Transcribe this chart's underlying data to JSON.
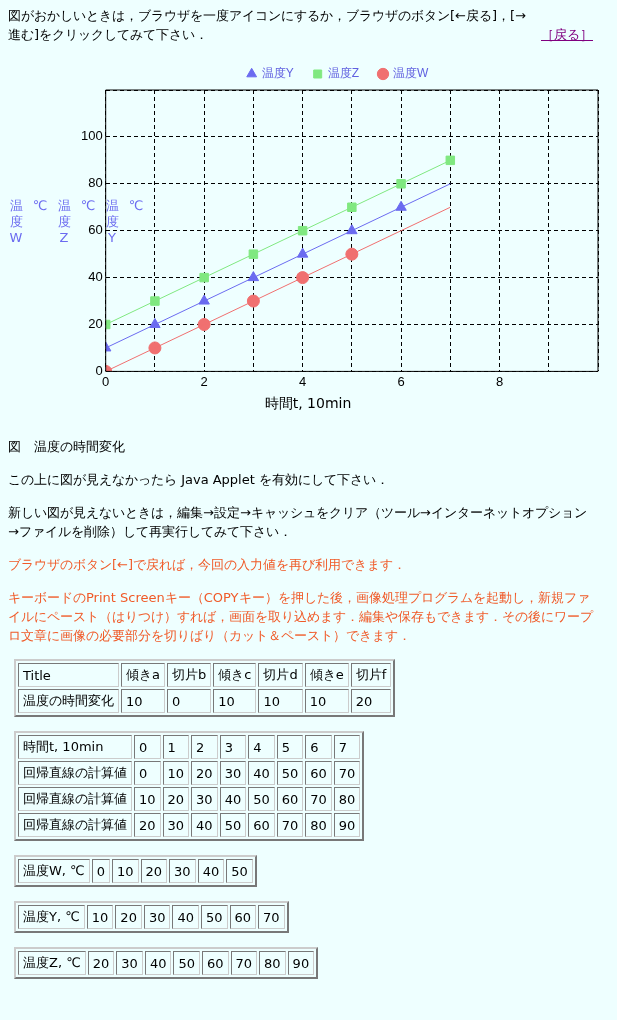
{
  "chart_data": {
    "type": "line",
    "xlabel": "時間t, 10min",
    "ylabel": "温度W ℃ 温度Z ℃ 温度Y ℃",
    "xlim": [
      0,
      10
    ],
    "xticks": [
      0,
      {
        "value": 1,
        "label": null
      },
      2,
      {
        "value": 3,
        "label": null
      },
      4,
      {
        "value": 5,
        "label": null
      },
      6,
      {
        "value": 7,
        "label": null
      },
      8,
      {
        "value": 9,
        "label": null
      },
      {
        "value": 10,
        "label": null
      }
    ],
    "ylim": [
      0,
      120
    ],
    "yticks": [
      0,
      20,
      40,
      60,
      80,
      100,
      {
        "value": 120,
        "label": null
      }
    ],
    "grid": true,
    "legend": "top",
    "series": [
      {
        "type": "line",
        "color": "#f07070",
        "marker": "none",
        "x": [
          0,
          1,
          2,
          3,
          4,
          5,
          6,
          7
        ],
        "values": [
          0,
          10,
          20,
          30,
          40,
          50,
          60,
          70
        ]
      },
      {
        "type": "line",
        "color": "#6b6bf0",
        "marker": "none",
        "x": [
          0,
          1,
          2,
          3,
          4,
          5,
          6,
          7
        ],
        "values": [
          10,
          20,
          30,
          40,
          50,
          60,
          70,
          80
        ]
      },
      {
        "type": "line",
        "color": "#80e880",
        "marker": "none",
        "x": [
          0,
          1,
          2,
          3,
          4,
          5,
          6,
          7
        ],
        "values": [
          20,
          30,
          40,
          50,
          60,
          70,
          80,
          90
        ]
      },
      {
        "type": "scatter",
        "name": "温度Y",
        "color": "#6b6bf0",
        "marker": "triangle",
        "x": [
          0,
          1,
          2,
          3,
          4,
          5,
          6
        ],
        "values": [
          10,
          20,
          30,
          40,
          50,
          60,
          70
        ]
      },
      {
        "type": "scatter",
        "name": "温度Z",
        "color": "#80e880",
        "marker": "square",
        "x": [
          0,
          1,
          2,
          3,
          4,
          5,
          6,
          7
        ],
        "values": [
          20,
          30,
          40,
          50,
          60,
          70,
          80,
          90
        ]
      },
      {
        "type": "scatter",
        "name": "温度W",
        "color": "#f07070",
        "marker": "circle",
        "x": [
          0,
          1,
          2,
          3,
          4,
          5
        ],
        "values": [
          0,
          10,
          20,
          30,
          40,
          50
        ]
      }
    ],
    "annotations": [
      "図がおかしいときは，ブラウザを一度アイコンにするか，ブラウザのボタン[←戻る]，[→進む]をクリックしてみて下さい．",
      "［戻る］",
      "図　温度の時間変化",
      "この上に図が見えなかったら Java Applet を有効にして下さい．",
      "新しい図が見えないときは，編集→設定→キャッシュをクリア（ツール→インターネットオプション→ファイルを削除）して再実行してみて下さい．",
      "ブラウザのボタン[←]で戻れば，今回の入力値を再び利用できます．",
      "キーボードのPrint Screenキー（COPYキー）を押した後，画像処理プログラムを起動し，新規ファイルにペースト（はりつけ）すれば，画面を取り込めます．編集や保存もできます．その後にワープロ文章に画像の必要部分を切りばり（カット＆ペースト）できます．",
      "Title\t傾きa\t切片b\t傾きc\t切片d\t傾きe\t切片f",
      "温度の時間変化\t10\t0\t10\t10\t10\t20",
      "時間t, 10min\t0\t1\t2\t3\t4\t5\t6\t7",
      "回帰直線の計算値\t0\t10\t20\t30\t40\t50\t60\t70",
      "回帰直線の計算値\t10\t20\t30\t40\t50\t60\t70\t80",
      "回帰直線の計算値\t20\t30\t40\t50\t60\t70\t80\t90",
      "温度W, ℃\t0\t10\t20\t30\t40\t50",
      "温度Y, ℃\t10\t20\t30\t40\t50\t60\t70",
      "温度Z, ℃\t20\t30\t40\t50\t60\t70\t80\t90"
    ]
  }
}
